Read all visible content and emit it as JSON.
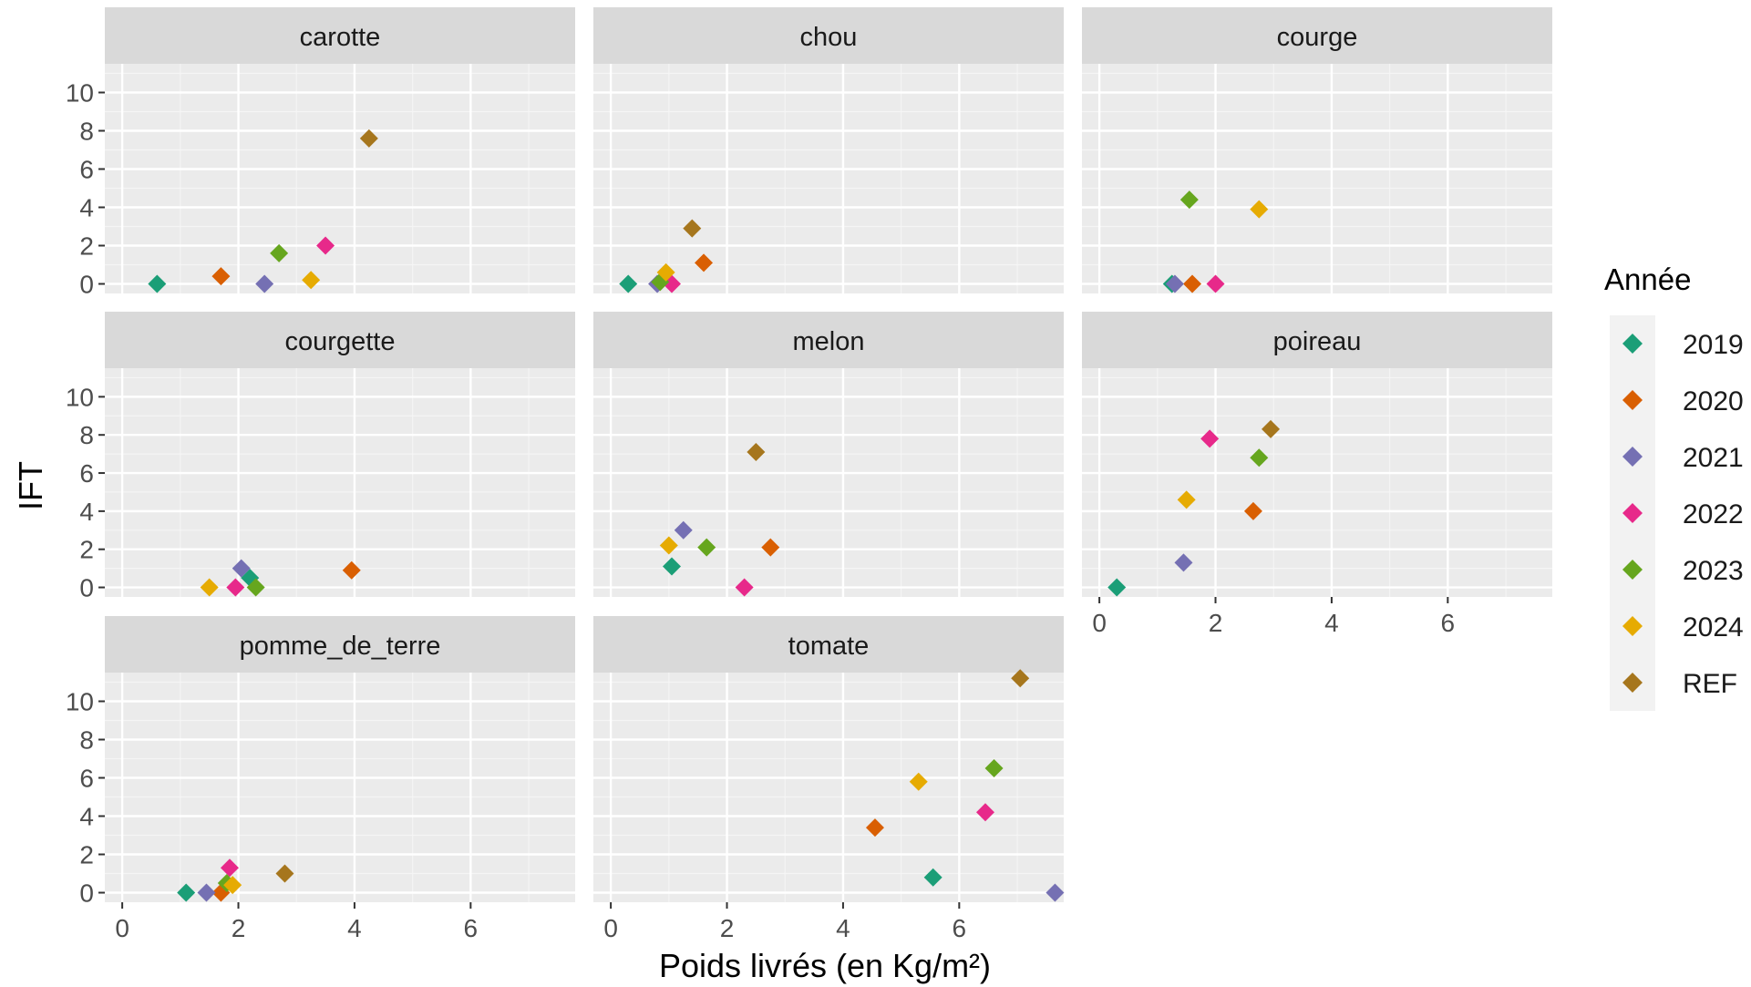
{
  "chart_data": {
    "type": "scatter",
    "xlabel": "Poids livrés (en Kg/m²)",
    "ylabel": "IFT",
    "xlim": [
      -0.3,
      7.8
    ],
    "ylim": [
      -0.5,
      11.5
    ],
    "x_ticks": [
      0,
      2,
      4,
      6
    ],
    "y_ticks": [
      0,
      2,
      4,
      6,
      8,
      10
    ],
    "grid": true,
    "legend": {
      "title": "Année",
      "position": "right",
      "entries": [
        {
          "label": "2019",
          "color": "#1B9E77"
        },
        {
          "label": "2020",
          "color": "#D95F02"
        },
        {
          "label": "2021",
          "color": "#7570B3"
        },
        {
          "label": "2022",
          "color": "#E7298A"
        },
        {
          "label": "2023",
          "color": "#66A61E"
        },
        {
          "label": "2024",
          "color": "#E6AB02"
        },
        {
          "label": "REF",
          "color": "#A6761D"
        }
      ]
    },
    "facets": [
      {
        "name": "carotte",
        "points": [
          {
            "series": "2019",
            "x": 0.6,
            "y": 0
          },
          {
            "series": "2020",
            "x": 1.7,
            "y": 0.4
          },
          {
            "series": "2021",
            "x": 2.45,
            "y": 0
          },
          {
            "series": "2022",
            "x": 3.5,
            "y": 2.0
          },
          {
            "series": "2023",
            "x": 2.7,
            "y": 1.6
          },
          {
            "series": "2024",
            "x": 3.25,
            "y": 0.2
          },
          {
            "series": "REF",
            "x": 4.25,
            "y": 7.6
          }
        ]
      },
      {
        "name": "chou",
        "points": [
          {
            "series": "2019",
            "x": 0.3,
            "y": 0
          },
          {
            "series": "2020",
            "x": 1.6,
            "y": 1.1
          },
          {
            "series": "2021",
            "x": 0.8,
            "y": 0
          },
          {
            "series": "2022",
            "x": 1.05,
            "y": 0
          },
          {
            "series": "2023",
            "x": 0.85,
            "y": 0.1
          },
          {
            "series": "2024",
            "x": 0.95,
            "y": 0.6
          },
          {
            "series": "REF",
            "x": 1.4,
            "y": 2.9
          }
        ]
      },
      {
        "name": "courge",
        "points": [
          {
            "series": "2019",
            "x": 1.25,
            "y": 0
          },
          {
            "series": "2020",
            "x": 1.6,
            "y": 0
          },
          {
            "series": "2021",
            "x": 1.3,
            "y": 0
          },
          {
            "series": "2022",
            "x": 2.0,
            "y": 0
          },
          {
            "series": "2023",
            "x": 1.55,
            "y": 4.4
          },
          {
            "series": "2024",
            "x": 2.75,
            "y": 3.9
          }
        ]
      },
      {
        "name": "courgette",
        "points": [
          {
            "series": "2019",
            "x": 2.2,
            "y": 0.5
          },
          {
            "series": "2020",
            "x": 3.95,
            "y": 0.9
          },
          {
            "series": "2021",
            "x": 2.05,
            "y": 1.0
          },
          {
            "series": "2022",
            "x": 1.95,
            "y": 0
          },
          {
            "series": "2023",
            "x": 2.3,
            "y": 0
          },
          {
            "series": "2024",
            "x": 1.5,
            "y": 0
          }
        ]
      },
      {
        "name": "melon",
        "points": [
          {
            "series": "2019",
            "x": 1.05,
            "y": 1.1
          },
          {
            "series": "2020",
            "x": 2.75,
            "y": 2.1
          },
          {
            "series": "2021",
            "x": 1.25,
            "y": 3.0
          },
          {
            "series": "2022",
            "x": 2.3,
            "y": 0
          },
          {
            "series": "2023",
            "x": 1.65,
            "y": 2.1
          },
          {
            "series": "2024",
            "x": 1.0,
            "y": 2.2
          },
          {
            "series": "REF",
            "x": 2.5,
            "y": 7.1
          }
        ]
      },
      {
        "name": "poireau",
        "points": [
          {
            "series": "2019",
            "x": 0.3,
            "y": 0
          },
          {
            "series": "2020",
            "x": 2.65,
            "y": 4.0
          },
          {
            "series": "2021",
            "x": 1.45,
            "y": 1.3
          },
          {
            "series": "2022",
            "x": 1.9,
            "y": 7.8
          },
          {
            "series": "2023",
            "x": 2.75,
            "y": 6.8
          },
          {
            "series": "2024",
            "x": 1.5,
            "y": 4.6
          },
          {
            "series": "REF",
            "x": 2.95,
            "y": 8.3
          }
        ]
      },
      {
        "name": "pomme_de_terre",
        "points": [
          {
            "series": "2019",
            "x": 1.1,
            "y": 0
          },
          {
            "series": "2020",
            "x": 1.7,
            "y": 0
          },
          {
            "series": "2021",
            "x": 1.45,
            "y": 0
          },
          {
            "series": "2022",
            "x": 1.85,
            "y": 1.3
          },
          {
            "series": "2023",
            "x": 1.8,
            "y": 0.5
          },
          {
            "series": "2024",
            "x": 1.9,
            "y": 0.4
          },
          {
            "series": "REF",
            "x": 2.8,
            "y": 1.0
          }
        ]
      },
      {
        "name": "tomate",
        "points": [
          {
            "series": "2019",
            "x": 5.55,
            "y": 0.8
          },
          {
            "series": "2020",
            "x": 4.55,
            "y": 3.4
          },
          {
            "series": "2021",
            "x": 7.65,
            "y": 0
          },
          {
            "series": "2022",
            "x": 6.45,
            "y": 4.2
          },
          {
            "series": "2023",
            "x": 6.6,
            "y": 6.5
          },
          {
            "series": "2024",
            "x": 5.3,
            "y": 5.8
          },
          {
            "series": "REF",
            "x": 7.05,
            "y": 11.2
          }
        ]
      }
    ]
  }
}
